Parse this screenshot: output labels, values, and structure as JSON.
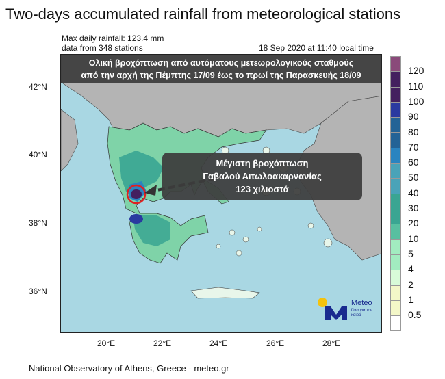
{
  "title": "Two-days accumulated rainfall from meteorological stations",
  "max_daily": "Max daily rainfall: 123.4 mm",
  "stations": "data from 348 stations",
  "timestamp": "18 Sep 2020 at 11:40 local time",
  "banner": {
    "line1": "Ολική βροχόπτωση από αυτόματους μετεωρολογικούς σταθμούς",
    "line2": "από την αρχή της Πέμπτης 17/09  έως το πρωί της Παρασκευής 18/09"
  },
  "callout": {
    "line1": "Μέγιστη βροχόπτωση",
    "line2": "Γαβαλού Αιτωλοακαρνανίας",
    "line3": "123 χιλιοστά"
  },
  "lat_ticks": [
    "42°N",
    "40°N",
    "38°N",
    "36°N"
  ],
  "lon_ticks": [
    "20°E",
    "22°E",
    "24°E",
    "26°E",
    "28°E"
  ],
  "colorbar": {
    "labels": [
      "120",
      "110",
      "100",
      "90",
      "80",
      "70",
      "60",
      "50",
      "40",
      "30",
      "20",
      "10",
      "5",
      "4",
      "2",
      "1",
      "0.5"
    ],
    "colors": [
      "#8a4a7a",
      "#44205f",
      "#44205f",
      "#2a3aa0",
      "#236396",
      "#236396",
      "#2a84c0",
      "#4aa3b8",
      "#4aa3b8",
      "#3aa592",
      "#3aa592",
      "#58bfa0",
      "#a2ecc0",
      "#a2ecc0",
      "#d8fbd8",
      "#f3f7c8",
      "#f3f7c8",
      "#ffffff"
    ]
  },
  "logo": {
    "name": "Meteo",
    "tagline": "Όλα για τον καιρό"
  },
  "footer": "National Observatory of Athens, Greece - meteo.gr",
  "colors": {
    "sea": "#a9d7e3",
    "land_other": "#b4b4b4",
    "banner_bg": "#3c3c3c",
    "marker": "#e02020"
  }
}
